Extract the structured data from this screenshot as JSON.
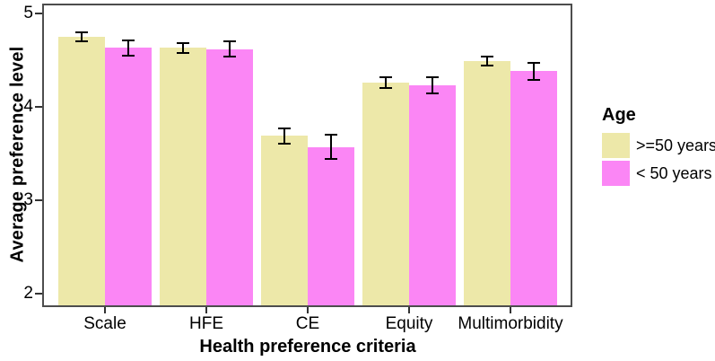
{
  "chart_data": {
    "type": "bar",
    "title": "",
    "xlabel": "Health preference criteria",
    "ylabel": "Average preference level",
    "categories": [
      "Scale",
      "HFE",
      "CE",
      "Equity",
      "Multimorbidity"
    ],
    "series": [
      {
        "name": ">=50 years",
        "color": "#EDE8A9",
        "values": [
          4.75,
          4.63,
          3.69,
          4.26,
          4.49
        ],
        "errors": [
          0.05,
          0.05,
          0.08,
          0.06,
          0.05
        ]
      },
      {
        "name": "< 50 years",
        "color": "#FB86F5",
        "values": [
          4.63,
          4.62,
          3.57,
          4.23,
          4.38
        ],
        "errors": [
          0.08,
          0.08,
          0.13,
          0.09,
          0.09
        ]
      }
    ],
    "ylim": [
      2,
      5
    ],
    "yticks": [
      2,
      3,
      4,
      5
    ],
    "grid": false,
    "error_bars": true,
    "legend": {
      "title": "Age",
      "position": "right"
    }
  },
  "style": {
    "panel_border_color": "#4d4d4d",
    "tick_color": "#333333",
    "error_bar_color": "#000000",
    "text_color": "#000000",
    "background": "#ffffff"
  }
}
